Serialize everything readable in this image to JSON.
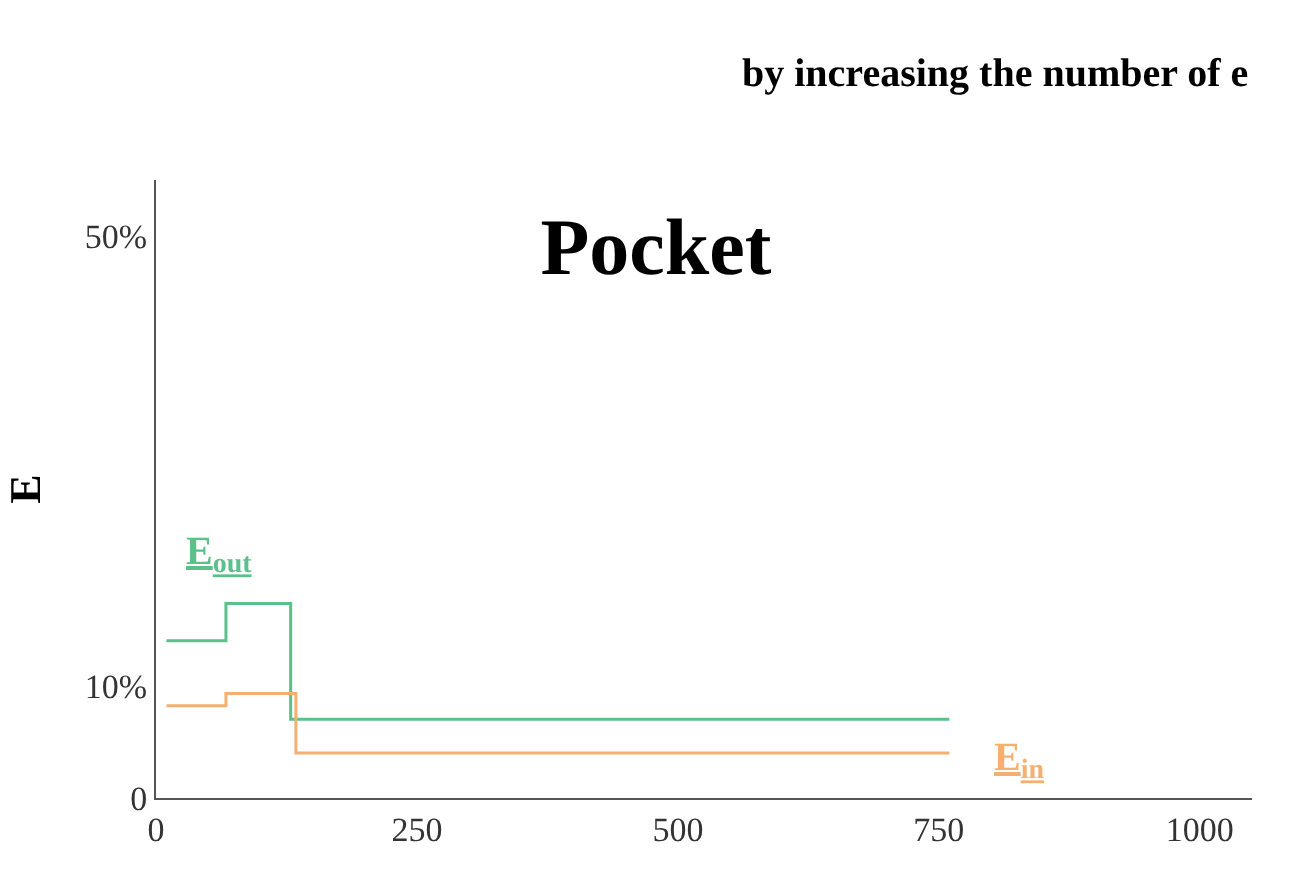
{
  "chart_data": {
    "type": "step",
    "title": "Pocket",
    "ylabel": "E",
    "annotations": [
      "by increasing the number of e"
    ],
    "series": [
      {
        "name": "E$_{out}$",
        "color": "#5cc08a",
        "x": [
          10,
          67,
          129,
          760
        ],
        "values": [
          14.0,
          17.3,
          7.0,
          7.0
        ]
      },
      {
        "name": "E$_{in}$",
        "color": "#f5b070",
        "x": [
          10,
          67,
          134,
          760
        ],
        "values": [
          8.2,
          9.3,
          4.0,
          4.0
        ]
      }
    ],
    "xlim": [
      0,
      1050
    ],
    "xticks": [
      0,
      250,
      500,
      750,
      1000
    ],
    "ylim": [
      0,
      55
    ],
    "yticks": [
      0,
      {
        "value": 10,
        "label": "10%"
      },
      {
        "value": 50,
        "label": "50%"
      }
    ],
    "legend": false,
    "line_style": "solid",
    "marker": "none"
  }
}
